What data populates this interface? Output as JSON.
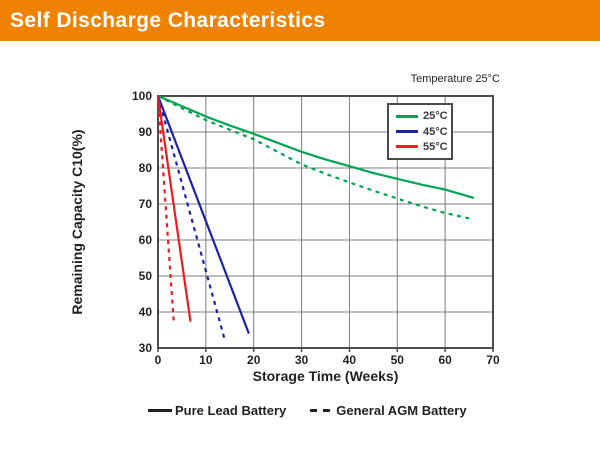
{
  "header": {
    "title": "Self Discharge Characteristics",
    "banner_color": "#EF8200"
  },
  "chart_data": {
    "type": "line",
    "temperature_note": "Temperature 25°C",
    "xlabel": "Storage Time (Weeks)",
    "ylabel": "Remaining Capacity C10(%)",
    "xlim": [
      0,
      70
    ],
    "ylim": [
      30,
      100
    ],
    "xticks": [
      0,
      10,
      20,
      30,
      40,
      50,
      60,
      70
    ],
    "yticks": [
      30,
      40,
      50,
      60,
      70,
      80,
      90,
      100
    ],
    "grid": true,
    "colors": {
      "grid": "#7D7D7D",
      "border": "#4D4D4F",
      "green": "#00A551",
      "blue": "#1C21A5",
      "red": "#EC1C24"
    },
    "legend": {
      "position": "top-right",
      "items": [
        {
          "label": "25°C",
          "color": "#00A551"
        },
        {
          "label": "45°C",
          "color": "#1C21A5"
        },
        {
          "label": "55°C",
          "color": "#EC1C24"
        }
      ]
    },
    "style_legend": [
      {
        "label": "Pure Lead Battery",
        "style": "solid"
      },
      {
        "label": "General AGM Battery",
        "style": "dashed"
      }
    ],
    "series": [
      {
        "name": "25°C Pure Lead Battery",
        "color": "#00A551",
        "style": "solid",
        "points": [
          [
            0,
            100
          ],
          [
            5,
            97.2
          ],
          [
            10,
            94.3
          ],
          [
            15,
            91.8
          ],
          [
            20,
            89.5
          ],
          [
            25,
            87
          ],
          [
            30,
            84.5
          ],
          [
            35,
            82.4
          ],
          [
            40,
            80.5
          ],
          [
            45,
            78.6
          ],
          [
            50,
            77
          ],
          [
            55,
            75.4
          ],
          [
            60,
            74
          ],
          [
            66,
            71.7
          ]
        ]
      },
      {
        "name": "25°C General AGM Battery",
        "color": "#00A551",
        "style": "dashed",
        "points": [
          [
            0,
            100
          ],
          [
            5,
            96.6
          ],
          [
            10,
            93.3
          ],
          [
            15,
            90.6
          ],
          [
            20,
            88
          ],
          [
            25,
            84.5
          ],
          [
            30,
            81
          ],
          [
            35,
            78.4
          ],
          [
            40,
            76
          ],
          [
            45,
            73.7
          ],
          [
            50,
            71.5
          ],
          [
            55,
            69.4
          ],
          [
            60,
            67.5
          ],
          [
            65,
            66
          ]
        ]
      },
      {
        "name": "45°C Pure Lead Battery",
        "color": "#1C21A5",
        "style": "solid",
        "points": [
          [
            0,
            100
          ],
          [
            19,
            34
          ]
        ]
      },
      {
        "name": "45°C General AGM Battery",
        "color": "#1C21A5",
        "style": "dashed",
        "points": [
          [
            0,
            100
          ],
          [
            14,
            32
          ]
        ]
      },
      {
        "name": "55°C Pure Lead Battery",
        "color": "#EC1C24",
        "style": "solid",
        "points": [
          [
            0,
            100
          ],
          [
            6.8,
            37.3
          ]
        ]
      },
      {
        "name": "55°C General AGM Battery",
        "color": "#EC1C24",
        "style": "dashed",
        "points": [
          [
            0,
            100
          ],
          [
            3.3,
            37
          ]
        ]
      }
    ]
  }
}
